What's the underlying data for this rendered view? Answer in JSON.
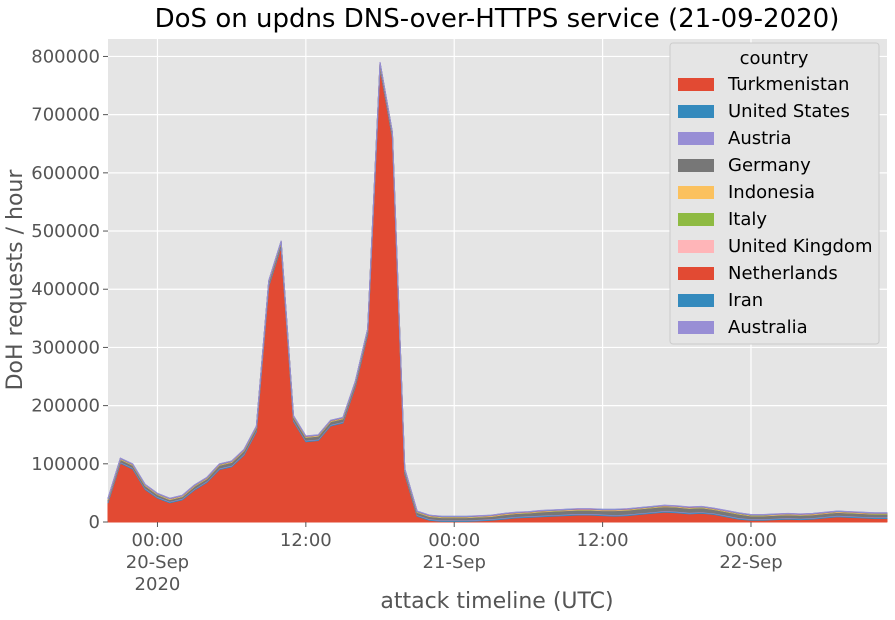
{
  "chart_data": {
    "type": "area",
    "stacked": true,
    "title": "DoS on updns DNS-over-HTTPS service (21-09-2020)",
    "xlabel": "attack timeline (UTC)",
    "ylabel": "DoH requests / hour",
    "ylim": [
      0,
      830000
    ],
    "xlim": [
      "2020-09-19T20:00",
      "2020-09-22T11:00"
    ],
    "y_ticks": [
      0,
      100000,
      200000,
      300000,
      400000,
      500000,
      600000,
      700000,
      800000
    ],
    "x_ticks": [
      {
        "at": "2020-09-20T00:00",
        "lines": [
          "00:00",
          "20-Sep",
          "2020"
        ]
      },
      {
        "at": "2020-09-20T12:00",
        "lines": [
          "12:00"
        ]
      },
      {
        "at": "2020-09-21T00:00",
        "lines": [
          "00:00",
          "21-Sep"
        ]
      },
      {
        "at": "2020-09-21T12:00",
        "lines": [
          "12:00"
        ]
      },
      {
        "at": "2020-09-22T00:00",
        "lines": [
          "00:00",
          "22-Sep"
        ]
      }
    ],
    "grid": true,
    "background": "#E5E5E5",
    "legend": {
      "title": "country",
      "position": "top-right"
    },
    "x": [
      "2020-09-19T20:00",
      "2020-09-19T21:00",
      "2020-09-19T22:00",
      "2020-09-19T23:00",
      "2020-09-20T00:00",
      "2020-09-20T01:00",
      "2020-09-20T02:00",
      "2020-09-20T03:00",
      "2020-09-20T04:00",
      "2020-09-20T05:00",
      "2020-09-20T06:00",
      "2020-09-20T07:00",
      "2020-09-20T08:00",
      "2020-09-20T09:00",
      "2020-09-20T10:00",
      "2020-09-20T11:00",
      "2020-09-20T12:00",
      "2020-09-20T13:00",
      "2020-09-20T14:00",
      "2020-09-20T15:00",
      "2020-09-20T16:00",
      "2020-09-20T17:00",
      "2020-09-20T18:00",
      "2020-09-20T19:00",
      "2020-09-20T20:00",
      "2020-09-20T21:00",
      "2020-09-20T22:00",
      "2020-09-20T23:00",
      "2020-09-21T00:00",
      "2020-09-21T01:00",
      "2020-09-21T02:00",
      "2020-09-21T03:00",
      "2020-09-21T04:00",
      "2020-09-21T05:00",
      "2020-09-21T06:00",
      "2020-09-21T07:00",
      "2020-09-21T08:00",
      "2020-09-21T09:00",
      "2020-09-21T10:00",
      "2020-09-21T11:00",
      "2020-09-21T12:00",
      "2020-09-21T13:00",
      "2020-09-21T14:00",
      "2020-09-21T15:00",
      "2020-09-21T16:00",
      "2020-09-21T17:00",
      "2020-09-21T18:00",
      "2020-09-21T19:00",
      "2020-09-21T20:00",
      "2020-09-21T21:00",
      "2020-09-21T22:00",
      "2020-09-21T23:00",
      "2020-09-22T00:00",
      "2020-09-22T01:00",
      "2020-09-22T02:00",
      "2020-09-22T03:00",
      "2020-09-22T04:00",
      "2020-09-22T05:00",
      "2020-09-22T06:00",
      "2020-09-22T07:00",
      "2020-09-22T08:00",
      "2020-09-22T09:00",
      "2020-09-22T10:00",
      "2020-09-22T11:00"
    ],
    "series": [
      {
        "name": "Turkmenistan",
        "color": "#E24A33",
        "values": [
          33000,
          101000,
          91000,
          56000,
          41000,
          33000,
          38000,
          55000,
          68000,
          90000,
          95000,
          115000,
          155000,
          405000,
          473000,
          173000,
          138000,
          140000,
          165000,
          170000,
          232000,
          322000,
          780000,
          660000,
          82000,
          10000,
          3000,
          1000,
          1000,
          1000,
          2000,
          3000,
          5000,
          7000,
          8000,
          9000,
          10000,
          11000,
          12000,
          12000,
          11000,
          10000,
          11000,
          13000,
          15000,
          17000,
          16000,
          14000,
          15000,
          13000,
          9000,
          5000,
          3000,
          3000,
          4000,
          5000,
          4000,
          5000,
          7000,
          9000,
          8000,
          7000,
          6000,
          6000
        ]
      },
      {
        "name": "United States",
        "color": "#348ABD",
        "values": [
          1500,
          1500,
          1500,
          1500,
          1500,
          1500,
          1500,
          1500,
          1500,
          1500,
          1500,
          1500,
          1500,
          1500,
          1500,
          1500,
          1500,
          1500,
          1500,
          1500,
          1500,
          1500,
          1500,
          1500,
          1500,
          1500,
          1500,
          1500,
          1500,
          1500,
          1500,
          1500,
          1500,
          1500,
          1500,
          1500,
          1500,
          1500,
          1500,
          1500,
          1500,
          1500,
          1500,
          1500,
          1500,
          1500,
          1500,
          1500,
          1500,
          1500,
          1500,
          1500,
          1500,
          1500,
          1500,
          1500,
          1500,
          1500,
          1500,
          1500,
          1500,
          1500,
          1500,
          1500
        ]
      },
      {
        "name": "Austria",
        "color": "#988ED5",
        "values": [
          1000,
          1000,
          1000,
          1000,
          1000,
          1000,
          1000,
          1000,
          1000,
          1000,
          1000,
          1000,
          1000,
          1000,
          1000,
          1000,
          1000,
          1000,
          1000,
          1000,
          1000,
          1000,
          1000,
          1000,
          1000,
          1000,
          1000,
          1000,
          1000,
          1000,
          1000,
          1000,
          1000,
          1000,
          1000,
          1000,
          1000,
          1000,
          1000,
          1000,
          1000,
          1000,
          1000,
          1000,
          1000,
          1000,
          1000,
          1000,
          1000,
          1000,
          1000,
          1000,
          1000,
          1000,
          1000,
          1000,
          1000,
          1000,
          1000,
          1000,
          1000,
          1000,
          1000,
          1000
        ]
      },
      {
        "name": "Germany",
        "color": "#777777",
        "values": [
          3000,
          4000,
          4000,
          4000,
          3500,
          3000,
          3000,
          4000,
          4000,
          5000,
          5000,
          5000,
          5000,
          5000,
          5000,
          5000,
          5000,
          5000,
          5000,
          5000,
          5000,
          5000,
          5000,
          5000,
          5000,
          4000,
          4000,
          4000,
          4000,
          4000,
          4000,
          4000,
          5000,
          5000,
          5000,
          6000,
          6000,
          6000,
          6000,
          6000,
          6000,
          7000,
          7000,
          7000,
          7000,
          7000,
          7000,
          7000,
          7000,
          6000,
          6000,
          6000,
          5000,
          5000,
          5000,
          5000,
          5000,
          5000,
          5000,
          5000,
          5000,
          5000,
          5000,
          5000
        ]
      },
      {
        "name": "Indonesia",
        "color": "#FBC15E",
        "values": [
          500,
          500,
          500,
          500,
          500,
          500,
          500,
          500,
          500,
          500,
          500,
          500,
          500,
          500,
          500,
          500,
          500,
          500,
          500,
          500,
          500,
          500,
          500,
          500,
          500,
          500,
          500,
          500,
          500,
          500,
          500,
          500,
          500,
          500,
          500,
          500,
          500,
          500,
          500,
          500,
          500,
          500,
          500,
          500,
          500,
          500,
          500,
          500,
          500,
          500,
          500,
          500,
          500,
          500,
          500,
          500,
          500,
          500,
          500,
          500,
          500,
          500,
          500,
          500
        ]
      },
      {
        "name": "Italy",
        "color": "#8EBA42",
        "values": [
          500,
          500,
          500,
          500,
          500,
          500,
          500,
          500,
          500,
          500,
          500,
          500,
          500,
          500,
          500,
          500,
          500,
          500,
          500,
          500,
          500,
          500,
          500,
          500,
          500,
          500,
          500,
          500,
          500,
          500,
          500,
          500,
          500,
          500,
          500,
          500,
          500,
          500,
          500,
          500,
          500,
          500,
          500,
          500,
          500,
          500,
          500,
          500,
          500,
          500,
          500,
          500,
          500,
          500,
          500,
          500,
          500,
          500,
          500,
          500,
          500,
          500,
          500,
          500
        ]
      },
      {
        "name": "United Kingdom",
        "color": "#FFB5B8",
        "values": [
          500,
          500,
          500,
          500,
          500,
          500,
          500,
          500,
          500,
          500,
          500,
          500,
          500,
          500,
          500,
          500,
          500,
          500,
          500,
          500,
          500,
          500,
          500,
          500,
          500,
          500,
          500,
          500,
          500,
          500,
          500,
          500,
          500,
          500,
          500,
          500,
          500,
          500,
          500,
          500,
          500,
          500,
          500,
          500,
          500,
          500,
          500,
          500,
          500,
          500,
          500,
          500,
          500,
          500,
          500,
          500,
          500,
          500,
          500,
          500,
          500,
          500,
          500,
          500
        ]
      },
      {
        "name": "Netherlands",
        "color": "#E24A33",
        "values": [
          300,
          300,
          300,
          300,
          300,
          300,
          300,
          300,
          300,
          300,
          300,
          300,
          300,
          300,
          300,
          300,
          300,
          300,
          300,
          300,
          300,
          300,
          300,
          300,
          300,
          300,
          300,
          300,
          300,
          300,
          300,
          300,
          300,
          300,
          300,
          300,
          300,
          300,
          300,
          300,
          300,
          300,
          300,
          300,
          300,
          300,
          300,
          300,
          300,
          300,
          300,
          300,
          300,
          300,
          300,
          300,
          300,
          300,
          300,
          300,
          300,
          300,
          300,
          300
        ]
      },
      {
        "name": "Iran",
        "color": "#348ABD",
        "values": [
          300,
          300,
          300,
          300,
          300,
          300,
          300,
          300,
          300,
          300,
          300,
          300,
          300,
          300,
          300,
          300,
          300,
          300,
          300,
          300,
          300,
          300,
          300,
          300,
          300,
          300,
          300,
          300,
          300,
          300,
          300,
          300,
          300,
          300,
          300,
          300,
          300,
          300,
          300,
          300,
          300,
          300,
          300,
          300,
          300,
          300,
          300,
          300,
          300,
          300,
          300,
          300,
          300,
          300,
          300,
          300,
          300,
          300,
          300,
          300,
          300,
          300,
          300,
          300
        ]
      },
      {
        "name": "Australia",
        "color": "#988ED5",
        "values": [
          300,
          300,
          300,
          300,
          300,
          300,
          300,
          300,
          300,
          300,
          300,
          300,
          300,
          300,
          300,
          300,
          300,
          300,
          300,
          300,
          300,
          300,
          300,
          300,
          300,
          300,
          300,
          300,
          300,
          300,
          300,
          300,
          300,
          300,
          300,
          300,
          300,
          300,
          300,
          300,
          300,
          300,
          300,
          300,
          300,
          300,
          300,
          300,
          300,
          300,
          300,
          300,
          300,
          300,
          300,
          300,
          300,
          300,
          300,
          300,
          300,
          300,
          300,
          300
        ]
      }
    ]
  }
}
